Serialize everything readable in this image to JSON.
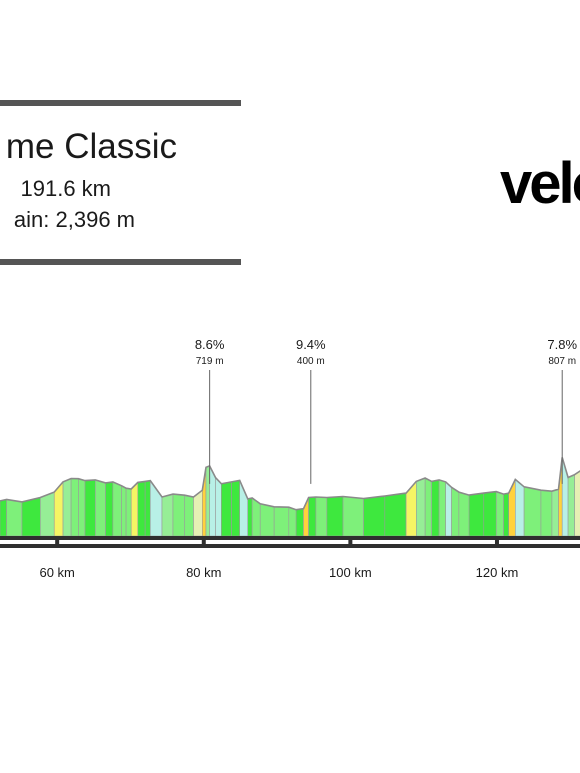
{
  "header": {
    "title": "me Classic",
    "distance": "191.6 km",
    "elevation_gain": "ain: 2,396 m"
  },
  "logo_text": "velo",
  "chart_data": {
    "type": "area",
    "title": "",
    "xlabel": "",
    "ylabel": "",
    "x_ticks": [
      {
        "km": 60,
        "label": "60 km"
      },
      {
        "km": 80,
        "label": "80 km"
      },
      {
        "km": 100,
        "label": "100 km"
      },
      {
        "km": 120,
        "label": "120 km"
      }
    ],
    "climbs": [
      {
        "km": 80.8,
        "gradient": "8.6%",
        "summit": "719 m"
      },
      {
        "km": 94.6,
        "gradient": "9.4%",
        "summit": "400 m"
      },
      {
        "km": 128.9,
        "gradient": "7.8%",
        "summit": "807 m"
      }
    ],
    "x": [
      52.2,
      53.1,
      55.2,
      57.7,
      59.6,
      60.8,
      61.9,
      62.9,
      63.8,
      65.2,
      66.6,
      67.6,
      68.8,
      69.4,
      70.1,
      71.0,
      72.0,
      72.7,
      74.3,
      75.8,
      77.4,
      78.6,
      79.8,
      80.3,
      80.8,
      81.6,
      82.4,
      83.8,
      84.9,
      86.0,
      86.6,
      87.7,
      89.6,
      91.6,
      92.6,
      93.6,
      94.3,
      95.3,
      96.8,
      99.0,
      101.8,
      104.7,
      107.6,
      109.0,
      110.2,
      111.1,
      112.1,
      113.0,
      113.8,
      114.8,
      116.2,
      118.2,
      119.9,
      120.9,
      121.6,
      122.5,
      123.7,
      126.0,
      127.5,
      128.4,
      128.9,
      129.7,
      130.6,
      131.6,
      132.3
    ],
    "elevation": [
      360,
      375,
      350,
      395,
      450,
      555,
      590,
      588,
      568,
      575,
      545,
      555,
      515,
      490,
      482,
      550,
      560,
      568,
      400,
      430,
      418,
      400,
      470,
      705,
      719,
      600,
      535,
      555,
      570,
      380,
      390,
      330,
      300,
      295,
      270,
      280,
      395,
      400,
      395,
      405,
      385,
      410,
      440,
      560,
      595,
      560,
      575,
      555,
      500,
      450,
      420,
      440,
      455,
      430,
      440,
      580,
      505,
      470,
      460,
      480,
      807,
      600,
      630,
      680,
      545
    ]
  }
}
